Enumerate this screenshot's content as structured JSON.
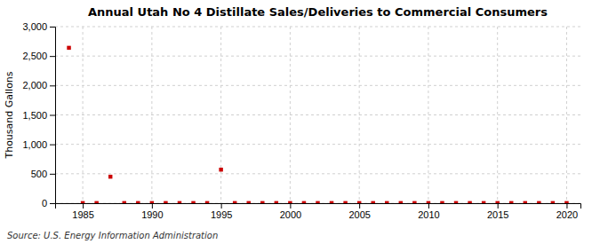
{
  "chart_data": {
    "type": "scatter",
    "title": "Annual Utah No 4 Distillate Sales/Deliveries to Commercial Consumers",
    "ylabel": "Thousand Gallons",
    "source": "Source: U.S. Energy Information Administration",
    "x": [
      1984,
      1985,
      1986,
      1987,
      1988,
      1989,
      1990,
      1991,
      1992,
      1993,
      1994,
      1995,
      1996,
      1997,
      1998,
      1999,
      2000,
      2001,
      2002,
      2003,
      2004,
      2005,
      2006,
      2007,
      2008,
      2009,
      2010,
      2011,
      2012,
      2013,
      2014,
      2015,
      2016,
      2017,
      2018,
      2019,
      2020
    ],
    "values": [
      2640,
      2,
      2,
      450,
      2,
      2,
      2,
      2,
      2,
      2,
      2,
      570,
      2,
      2,
      2,
      2,
      2,
      2,
      2,
      2,
      2,
      2,
      2,
      2,
      2,
      2,
      2,
      2,
      2,
      2,
      2,
      2,
      2,
      2,
      2,
      2,
      2
    ],
    "color": "#cc0000",
    "marker": "square",
    "xlim": [
      1983,
      2021
    ],
    "ylim": [
      0,
      3000
    ],
    "xticks": [
      1985,
      1990,
      1995,
      2000,
      2005,
      2010,
      2015,
      2020
    ],
    "yticks": [
      0,
      500,
      {
        "value": 1000,
        "label": "1,000"
      },
      {
        "value": 1500,
        "label": "1,500"
      },
      {
        "value": 2000,
        "label": "2,000"
      },
      {
        "value": 2500,
        "label": "2,500"
      },
      {
        "value": 3000,
        "label": "3,000"
      }
    ],
    "grid": true
  }
}
